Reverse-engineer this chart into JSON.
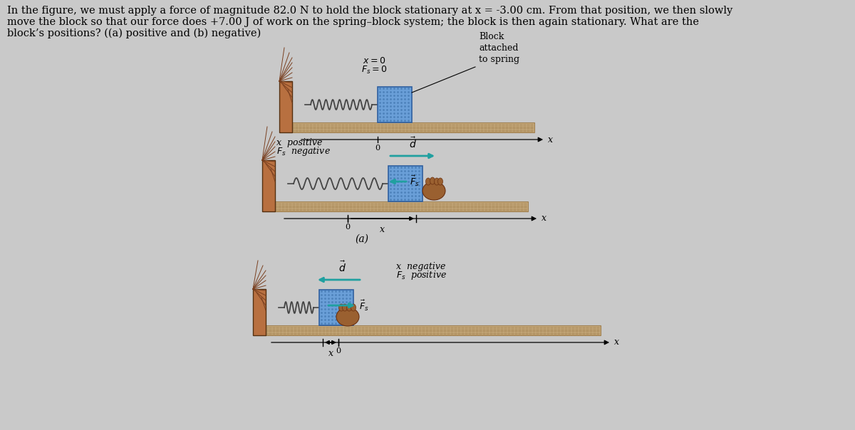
{
  "bg_color": "#c9c9c9",
  "wall_facecolor": "#b87040",
  "wall_hatch_color": "#7a4020",
  "track_facecolor": "#c4a87a",
  "track_texture_color": "#b09060",
  "track_border_color": "#a08050",
  "block_facecolor": "#6a9fd8",
  "block_stipple": "#4a7fb8",
  "spring_color": "#444444",
  "axis_color": "#000000",
  "arrow_teal": "#20a0a0",
  "hand_color": "#9a6030",
  "text_color": "#000000",
  "title_line1": "In the figure, we must apply a force of magnitude 82.0 N to hold the block stationary at x = -3.00 cm. From that position, we then slowly",
  "title_line2": "move the block so that our force does +7.00 J of work on the spring–block system; the block is then again stationary. What are the",
  "title_line3": "block’s positions? ((a) positive and (b) negative)"
}
